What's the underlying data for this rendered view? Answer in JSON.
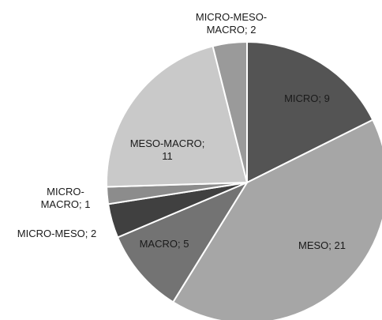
{
  "chart_data": {
    "type": "pie",
    "title": "",
    "legend": "none",
    "slices": [
      {
        "category": "MICRO",
        "value": 9,
        "label_lines": [
          "MICRO; 9"
        ],
        "color": "#545454"
      },
      {
        "category": "MESO",
        "value": 21,
        "label_lines": [
          "MESO; 21"
        ],
        "color": "#a6a6a6"
      },
      {
        "category": "MACRO",
        "value": 5,
        "label_lines": [
          "MACRO; 5"
        ],
        "color": "#737373"
      },
      {
        "category": "MICRO-MESO",
        "value": 2,
        "label_lines": [
          "MICRO-MESO; 2"
        ],
        "color": "#404040"
      },
      {
        "category": "MICRO-MACRO",
        "value": 1,
        "label_lines": [
          "MICRO-",
          "MACRO; 1"
        ],
        "color": "#8c8c8c"
      },
      {
        "category": "MESO-MACRO",
        "value": 11,
        "label_lines": [
          "MESO-MACRO;",
          "11"
        ],
        "color": "#c9c9c9"
      },
      {
        "category": "MICRO-MESO-MACRO",
        "value": 2,
        "label_lines": [
          "MICRO-MESO-",
          "MACRO; 2"
        ],
        "color": "#9a9a9a"
      }
    ]
  }
}
